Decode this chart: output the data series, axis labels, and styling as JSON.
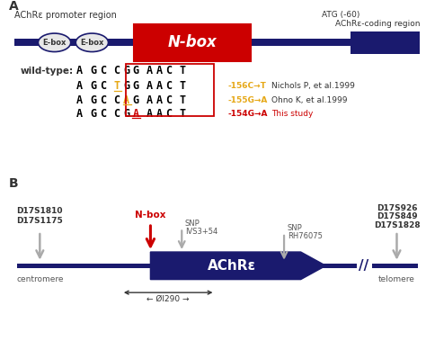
{
  "bg_color": "#ffffff",
  "panel_a_label": "A",
  "panel_b_label": "B",
  "promoter_label": "AChRε promoter region",
  "coding_label": "AChRε-coding region",
  "atg_label": "ATG (-60)",
  "nbox_label": "N-box",
  "ebox_label": "E-box",
  "wildtype_label": "wild-type:",
  "mut_labels": [
    "-156C→T",
    "-155G→A",
    "-154G→A"
  ],
  "mut_refs": [
    "Nichols P, et al.1999",
    "Ohno K, et al.1999",
    "This study"
  ],
  "mut_colors": [
    "#e6a817",
    "#e6a817",
    "#cc0000"
  ],
  "ref_colors": [
    "#333333",
    "#333333",
    "#cc0000"
  ],
  "chromosome_markers_left": [
    "D17S1810",
    "D17S1175"
  ],
  "chromosome_markers_right": [
    "D17S926",
    "D17S849",
    "D17S1828"
  ],
  "nbox_b_label": "N-box",
  "achr_label": "AChRε",
  "centromere_label": "centromere",
  "telomere_label": "telomere",
  "scale_label": "← Øl290 →",
  "dark_blue": "#1a1a6e",
  "red": "#cc0000",
  "orange": "#e6a817"
}
